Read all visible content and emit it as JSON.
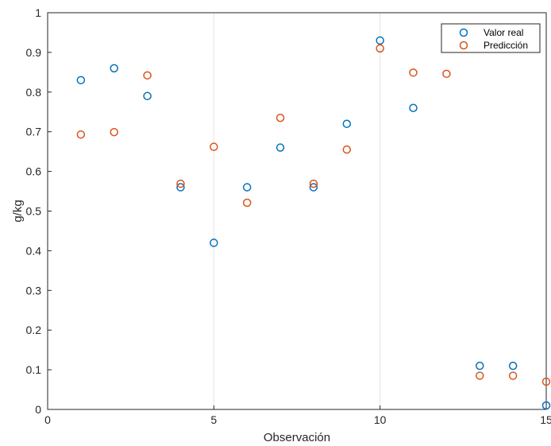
{
  "chart_data": {
    "type": "scatter",
    "title": "",
    "xlabel": "Observación",
    "ylabel": "g/kg",
    "xlim": [
      0,
      15
    ],
    "ylim": [
      0,
      1
    ],
    "xticks": [
      "0",
      "5",
      "10",
      "15"
    ],
    "yticks": [
      "0",
      "0.1",
      "0.2",
      "0.3",
      "0.4",
      "0.5",
      "0.6",
      "0.7",
      "0.8",
      "0.9",
      "1"
    ],
    "grid": "vertical",
    "legend_position": "top-right",
    "marker": "circle-open",
    "series": [
      {
        "name": "Valor real",
        "color": "#0072BD",
        "x": [
          1,
          2,
          3,
          4,
          5,
          6,
          7,
          8,
          9,
          10,
          11,
          13,
          14,
          15
        ],
        "y": [
          0.83,
          0.86,
          0.79,
          0.56,
          0.42,
          0.56,
          0.66,
          0.56,
          0.72,
          0.93,
          0.76,
          0.11,
          0.11,
          0.01
        ]
      },
      {
        "name": "Predicción",
        "color": "#D95319",
        "x": [
          1,
          2,
          3,
          4,
          5,
          6,
          7,
          8,
          9,
          10,
          11,
          12,
          13,
          14,
          15
        ],
        "y": [
          0.693,
          0.699,
          0.842,
          0.569,
          0.662,
          0.521,
          0.735,
          0.569,
          0.655,
          0.91,
          0.849,
          0.846,
          0.085,
          0.085,
          0.07
        ]
      }
    ]
  }
}
